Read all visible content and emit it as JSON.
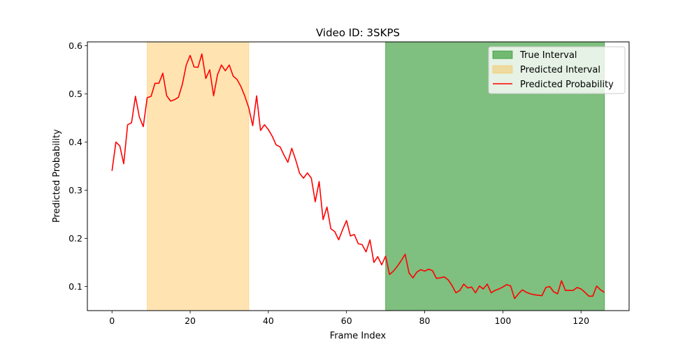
{
  "chart_data": {
    "type": "line",
    "title": "Video ID: 3SKPS",
    "xlabel": "Frame Index",
    "ylabel": "Predicted Probability",
    "xlim": [
      -6.3,
      132.3
    ],
    "ylim": [
      0.05,
      0.608
    ],
    "xticks": [
      "0",
      "20",
      "40",
      "60",
      "80",
      "100",
      "120"
    ],
    "yticks": [
      "0.1",
      "0.2",
      "0.3",
      "0.4",
      "0.5",
      "0.6"
    ],
    "grid": false,
    "legend_position": "top-right",
    "legend": [
      "True Interval",
      "Predicted Interval",
      "Predicted Probability"
    ],
    "true_interval": {
      "name": "True Interval",
      "start": 70,
      "end": 126,
      "color": "#008000"
    },
    "predicted_interval": {
      "name": "Predicted Interval",
      "start": 9,
      "end": 35,
      "color": "#ffa500"
    },
    "series": [
      {
        "name": "Predicted Probability",
        "color": "#ff0000",
        "x": [
          0,
          1,
          2,
          3,
          4,
          5,
          6,
          7,
          8,
          9,
          10,
          11,
          12,
          13,
          14,
          15,
          16,
          17,
          18,
          19,
          20,
          21,
          22,
          23,
          24,
          25,
          26,
          27,
          28,
          29,
          30,
          31,
          32,
          33,
          34,
          35,
          36,
          37,
          38,
          39,
          40,
          41,
          42,
          43,
          44,
          45,
          46,
          47,
          48,
          49,
          50,
          51,
          52,
          53,
          54,
          55,
          56,
          57,
          58,
          59,
          60,
          61,
          62,
          63,
          64,
          65,
          66,
          67,
          68,
          69,
          70,
          71,
          72,
          73,
          74,
          75,
          76,
          77,
          78,
          79,
          80,
          81,
          82,
          83,
          84,
          85,
          86,
          87,
          88,
          89,
          90,
          91,
          92,
          93,
          94,
          95,
          96,
          97,
          98,
          99,
          100,
          101,
          102,
          103,
          104,
          105,
          106,
          107,
          108,
          109,
          110,
          111,
          112,
          113,
          114,
          115,
          116,
          117,
          118,
          119,
          120,
          121,
          122,
          123,
          124,
          125,
          126
        ],
        "values": [
          0.34,
          0.4,
          0.392,
          0.355,
          0.436,
          0.44,
          0.495,
          0.452,
          0.432,
          0.492,
          0.495,
          0.522,
          0.522,
          0.543,
          0.496,
          0.485,
          0.488,
          0.493,
          0.52,
          0.56,
          0.58,
          0.556,
          0.555,
          0.583,
          0.532,
          0.55,
          0.496,
          0.54,
          0.56,
          0.548,
          0.56,
          0.537,
          0.53,
          0.515,
          0.495,
          0.471,
          0.434,
          0.496,
          0.424,
          0.436,
          0.426,
          0.412,
          0.394,
          0.39,
          0.373,
          0.358,
          0.387,
          0.363,
          0.335,
          0.325,
          0.336,
          0.325,
          0.276,
          0.318,
          0.239,
          0.265,
          0.22,
          0.214,
          0.197,
          0.218,
          0.237,
          0.205,
          0.208,
          0.189,
          0.187,
          0.172,
          0.197,
          0.15,
          0.162,
          0.145,
          0.163,
          0.125,
          0.132,
          0.142,
          0.154,
          0.167,
          0.128,
          0.118,
          0.13,
          0.135,
          0.132,
          0.136,
          0.133,
          0.117,
          0.118,
          0.12,
          0.114,
          0.102,
          0.087,
          0.092,
          0.105,
          0.097,
          0.099,
          0.087,
          0.101,
          0.095,
          0.105,
          0.087,
          0.092,
          0.095,
          0.099,
          0.104,
          0.101,
          0.075,
          0.085,
          0.093,
          0.088,
          0.085,
          0.083,
          0.082,
          0.081,
          0.098,
          0.1,
          0.089,
          0.085,
          0.112,
          0.092,
          0.092,
          0.092,
          0.098,
          0.095,
          0.088,
          0.08,
          0.08,
          0.101,
          0.093,
          0.088
        ]
      }
    ]
  }
}
